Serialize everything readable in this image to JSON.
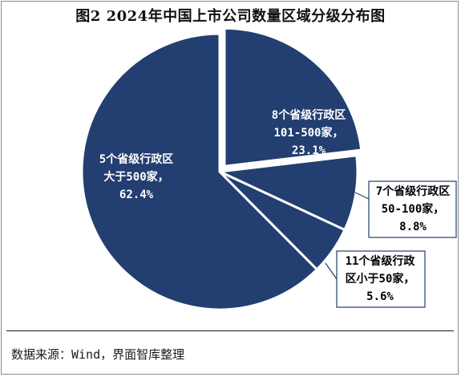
{
  "title": "图2 2024年中国上市公司数量区域分级分布图",
  "source": "数据来源：Wind，界面智库整理",
  "colors": {
    "slice": "#233e70",
    "separator": "#ffffff",
    "label_inside": "#ffffff",
    "label_outside": "#000000",
    "leader": "#233e70"
  },
  "chart_data": {
    "type": "pie",
    "title": "图2 2024年中国上市公司数量区域分级分布图",
    "legend": "none",
    "slices": [
      {
        "lines": [
          "5个省级行政区",
          "大于500家，",
          "62.4%"
        ],
        "value": 62.4,
        "label_position": "inside",
        "exploded": false
      },
      {
        "lines": [
          "8个省级行政区",
          "101-500家，",
          "23.1%"
        ],
        "value": 23.1,
        "label_position": "inside",
        "exploded": true
      },
      {
        "lines": [
          "7个省级行政区",
          "50-100家，",
          "8.8%"
        ],
        "value": 8.8,
        "label_position": "callout",
        "exploded": false
      },
      {
        "lines": [
          "11个省级行政",
          "区小于50家，",
          "5.6%"
        ],
        "value": 5.6,
        "label_position": "callout",
        "exploded": false
      }
    ]
  }
}
